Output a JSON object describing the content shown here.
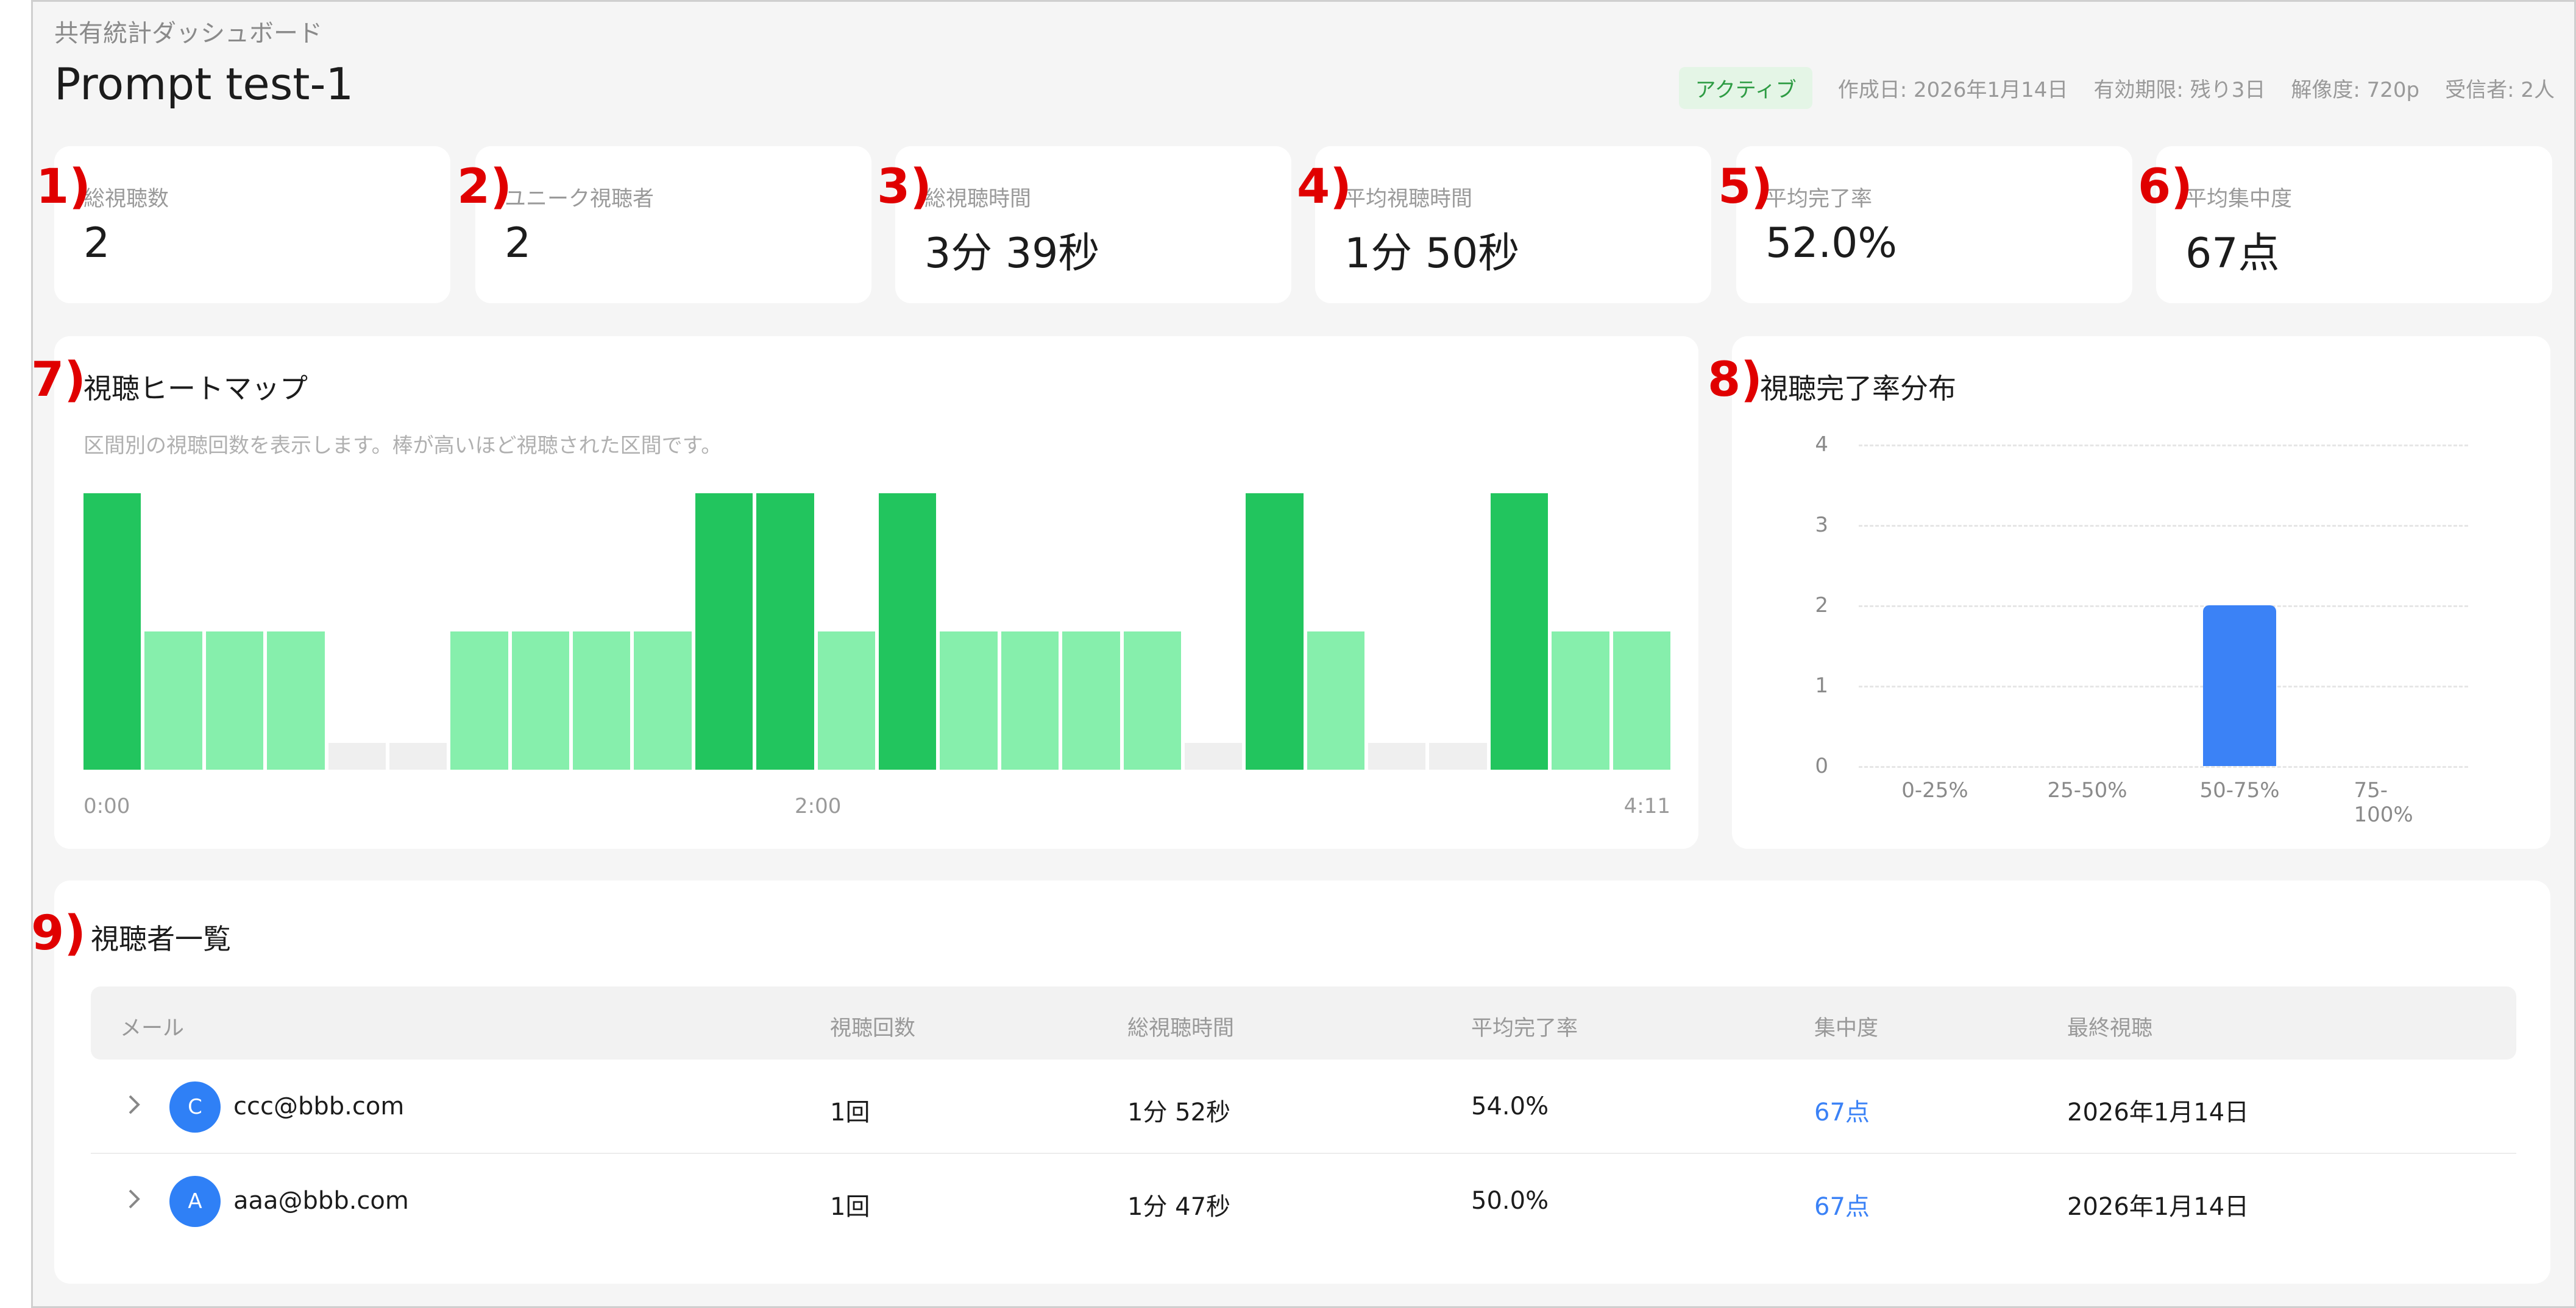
{
  "header": {
    "breadcrumb": "共有統計ダッシュボード",
    "title": "Prompt test-1",
    "status": "アクティブ",
    "created": "作成日: 2026年1月14日",
    "expiry": "有効期限: 残り3日",
    "resolution": "解像度: 720p",
    "recipients": "受信者: 2人"
  },
  "stats": [
    {
      "marker": "1)",
      "label": "総視聴数",
      "value": "2"
    },
    {
      "marker": "2)",
      "label": "ユニーク視聴者",
      "value": "2"
    },
    {
      "marker": "3)",
      "label": "総視聴時間",
      "value": "3分 39秒"
    },
    {
      "marker": "4)",
      "label": "平均視聴時間",
      "value": "1分 50秒"
    },
    {
      "marker": "5)",
      "label": "平均完了率",
      "value": "52.0%"
    },
    {
      "marker": "6)",
      "label": "平均集中度",
      "value": "67点"
    }
  ],
  "heatmap": {
    "marker": "7)",
    "title": "視聴ヒートマップ",
    "description": "区間別の視聴回数を表示します。棒が高いほど視聴された区間です。",
    "levels": [
      2,
      1,
      1,
      1,
      0,
      0,
      1,
      1,
      1,
      1,
      2,
      2,
      1,
      2,
      1,
      1,
      1,
      1,
      0,
      2,
      1,
      0,
      0,
      2,
      1,
      1
    ],
    "max_level": 2,
    "colors": {
      "high": "#22c55e",
      "mid": "#86efac",
      "none": "#efefef"
    },
    "x_start": "0:00",
    "x_mid": "2:00",
    "x_end": "4:11"
  },
  "chart_data": {
    "type": "bar",
    "title": "視聴完了率分布",
    "categories": [
      "0-25%",
      "25-50%",
      "50-75%",
      "75-100%"
    ],
    "values": [
      0,
      0,
      2,
      0
    ],
    "ylim": [
      0,
      4
    ],
    "yticks": [
      "0",
      "1",
      "2",
      "3",
      "4"
    ],
    "grid": true,
    "bar_color": "#3b82f6"
  },
  "distribution": {
    "marker": "8)"
  },
  "viewers": {
    "marker": "9)",
    "title": "視聴者一覧",
    "columns": [
      "メール",
      "視聴回数",
      "総視聴時間",
      "平均完了率",
      "集中度",
      "最終視聴"
    ],
    "rows": [
      {
        "initial": "C",
        "email": "ccc@bbb.com",
        "views": "1回",
        "total_time": "1分 52秒",
        "completion": "54.0%",
        "focus": "67点",
        "last": "2026年1月14日"
      },
      {
        "initial": "A",
        "email": "aaa@bbb.com",
        "views": "1回",
        "total_time": "1分 47秒",
        "completion": "50.0%",
        "focus": "67点",
        "last": "2026年1月14日"
      }
    ]
  }
}
